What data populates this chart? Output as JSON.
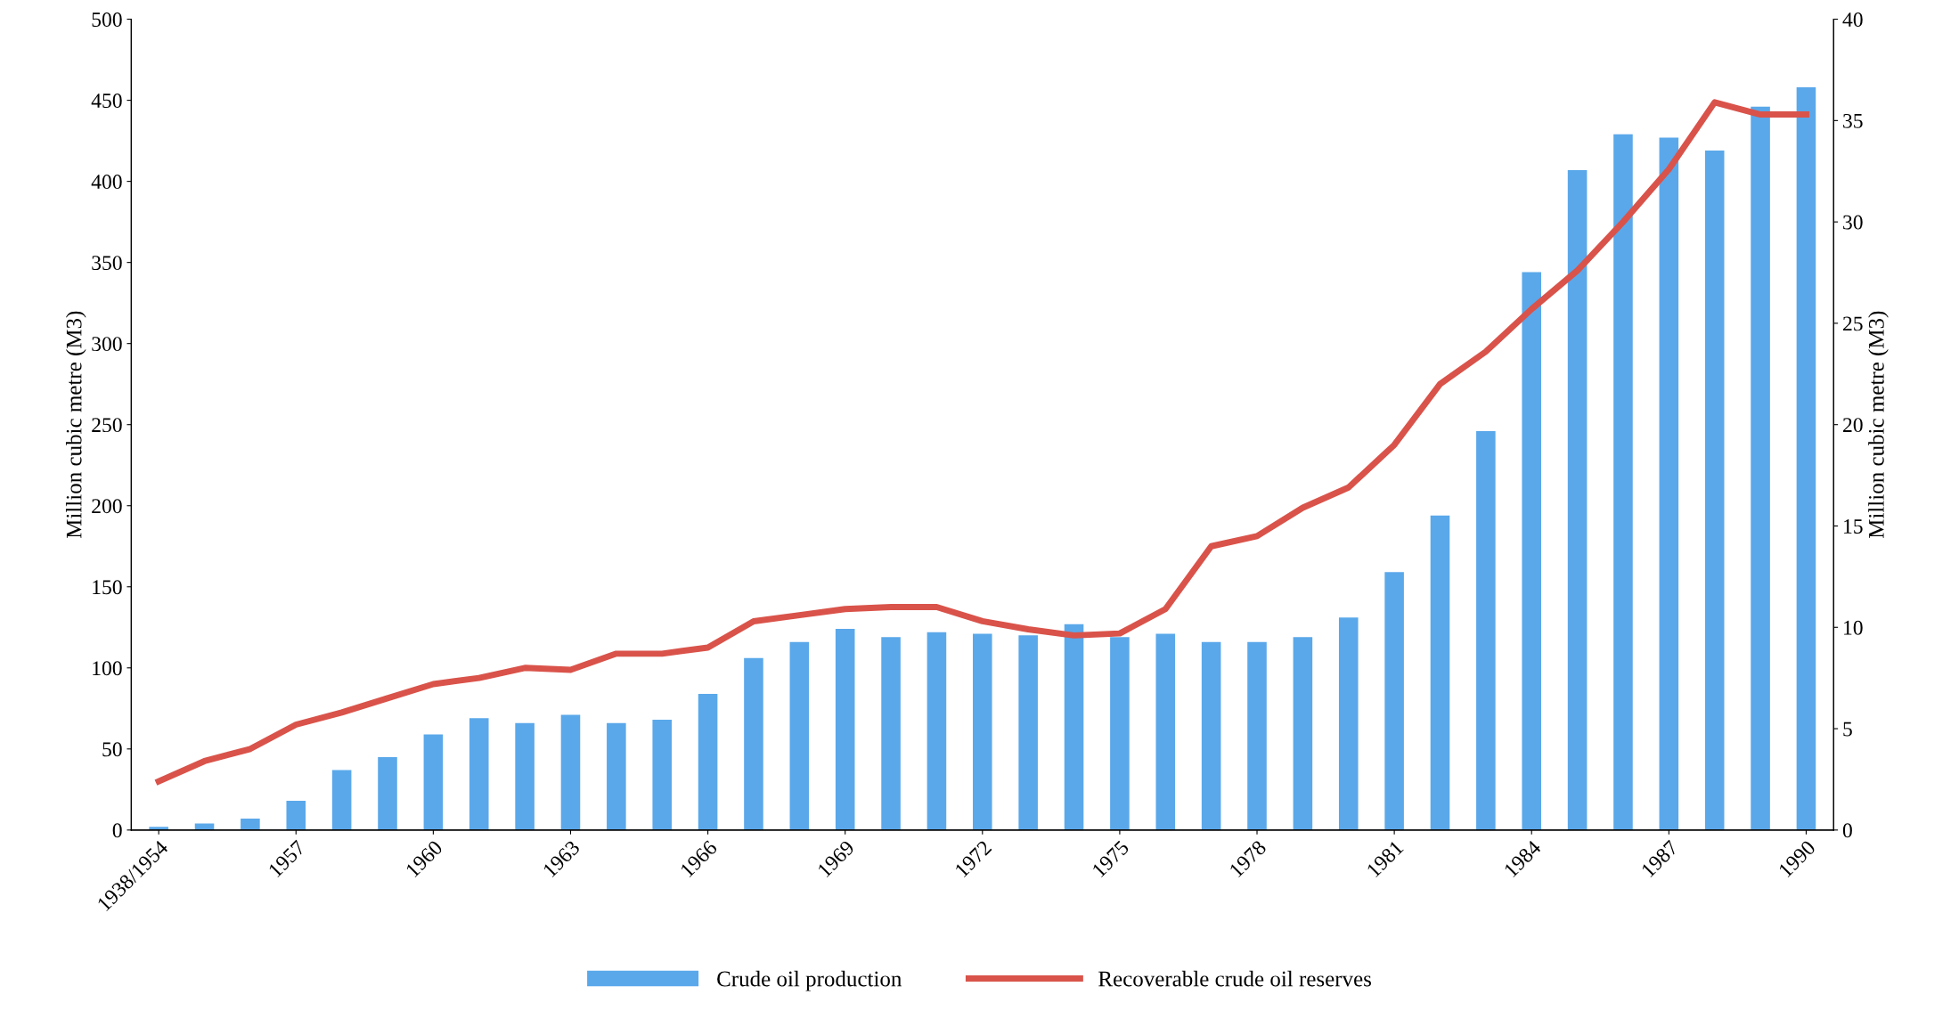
{
  "chart_data": {
    "type": "bar",
    "categories": [
      "1938/1954",
      null,
      null,
      "1957",
      null,
      null,
      "1960",
      null,
      null,
      "1963",
      null,
      null,
      "1966",
      null,
      null,
      "1969",
      null,
      null,
      "1972",
      null,
      null,
      "1975",
      null,
      null,
      "1978",
      null,
      null,
      "1981",
      null,
      null,
      "1984",
      null,
      null,
      "1987",
      null,
      null,
      "1990"
    ],
    "series": [
      {
        "name": "Crude oil production",
        "color": "#5aa8ea",
        "values": [
          2,
          4,
          7,
          18,
          37,
          45,
          59,
          69,
          66,
          71,
          66,
          68,
          84,
          106,
          116,
          124,
          119,
          122,
          121,
          120,
          127,
          119,
          121,
          116,
          116,
          119,
          131,
          159,
          194,
          246,
          344,
          407,
          429,
          427,
          419,
          446,
          458
        ]
      },
      {
        "name": "Recoverable crude oil reserves",
        "type": "line",
        "axis": "y2",
        "color": "#d9534a",
        "values": [
          2.4,
          3.4,
          4.0,
          5.2,
          5.8,
          6.5,
          7.2,
          7.5,
          8.0,
          7.9,
          8.7,
          8.7,
          9.0,
          10.3,
          10.6,
          10.9,
          11.0,
          11.0,
          10.3,
          9.9,
          9.6,
          9.7,
          10.9,
          14.0,
          14.5,
          15.9,
          16.9,
          19.0,
          22.0,
          23.6,
          25.7,
          27.6,
          30.0,
          32.6,
          35.9,
          35.3,
          35.3
        ]
      }
    ],
    "ylabel": "Million cubic metre (M3)",
    "y2label": "Million cubic metre (M3)",
    "ylim": [
      0,
      500
    ],
    "yticks": [
      0,
      50,
      100,
      150,
      200,
      250,
      300,
      350,
      400,
      450,
      500
    ],
    "y2lim": [
      0,
      40
    ],
    "y2ticks": [
      0,
      5,
      10,
      15,
      20,
      25,
      30,
      35,
      40
    ],
    "legend": "bottom",
    "grid": false
  }
}
